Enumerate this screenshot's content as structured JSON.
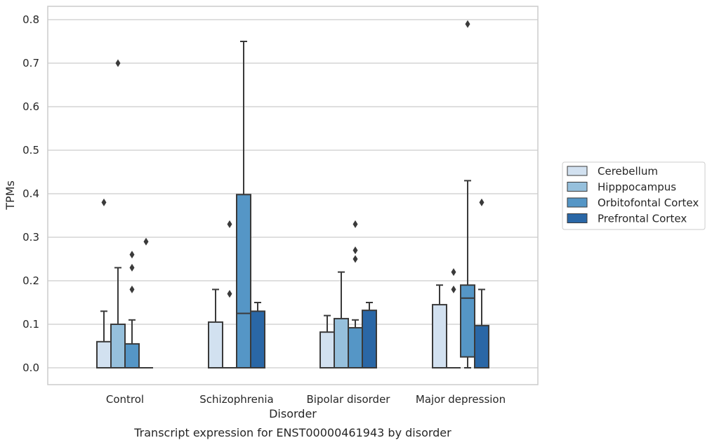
{
  "chart_data": {
    "type": "box",
    "title": "",
    "caption": "Transcript expression for ENST00000461943 by disorder",
    "xlabel": "Disorder",
    "ylabel": "TPMs",
    "ylim": [
      -0.04,
      0.83
    ],
    "yticks": [
      "0.0",
      "0.1",
      "0.2",
      "0.3",
      "0.4",
      "0.5",
      "0.6",
      "0.7",
      "0.8"
    ],
    "categories": [
      "Control",
      "Schizophrenia",
      "Bipolar disorder",
      "Major depression"
    ],
    "grid": "horizontal",
    "legend_position": "right",
    "colors": {
      "Cerebellum": "#d2e1f0",
      "Hipppocampus": "#96c0dc",
      "Orbitofontal Cortex": "#5596c6",
      "Prefrontal Cortex": "#2a67a6",
      "line": "#3a3a3a",
      "grid": "#cccccc",
      "frame": "#cccccc"
    },
    "series": [
      {
        "name": "Cerebellum",
        "boxes": [
          {
            "q1": 0.0,
            "median": 0.0,
            "q3": 0.06,
            "whisker_low": 0.0,
            "whisker_high": 0.13,
            "outliers": [
              0.38
            ]
          },
          {
            "q1": 0.0,
            "median": 0.0,
            "q3": 0.105,
            "whisker_low": 0.0,
            "whisker_high": 0.18,
            "outliers": []
          },
          {
            "q1": 0.0,
            "median": 0.0,
            "q3": 0.082,
            "whisker_low": 0.0,
            "whisker_high": 0.12,
            "outliers": []
          },
          {
            "q1": 0.0,
            "median": 0.0,
            "q3": 0.145,
            "whisker_low": 0.0,
            "whisker_high": 0.19,
            "outliers": []
          }
        ]
      },
      {
        "name": "Hipppocampus",
        "boxes": [
          {
            "q1": 0.0,
            "median": 0.0,
            "q3": 0.1,
            "whisker_low": 0.0,
            "whisker_high": 0.23,
            "outliers": [
              0.7
            ]
          },
          {
            "q1": 0.0,
            "median": 0.0,
            "q3": 0.0,
            "whisker_low": 0.0,
            "whisker_high": 0.0,
            "outliers": [
              0.33,
              0.17
            ]
          },
          {
            "q1": 0.0,
            "median": 0.0,
            "q3": 0.113,
            "whisker_low": 0.0,
            "whisker_high": 0.22,
            "outliers": []
          },
          {
            "q1": 0.0,
            "median": 0.0,
            "q3": 0.0,
            "whisker_low": 0.0,
            "whisker_high": 0.0,
            "outliers": [
              0.22,
              0.18
            ]
          }
        ]
      },
      {
        "name": "Orbitofontal Cortex",
        "boxes": [
          {
            "q1": 0.0,
            "median": 0.0,
            "q3": 0.055,
            "whisker_low": 0.0,
            "whisker_high": 0.11,
            "outliers": [
              0.26,
              0.23,
              0.18
            ]
          },
          {
            "q1": 0.0,
            "median": 0.125,
            "q3": 0.398,
            "whisker_low": 0.0,
            "whisker_high": 0.75,
            "outliers": []
          },
          {
            "q1": 0.0,
            "median": 0.0,
            "q3": 0.092,
            "whisker_low": 0.0,
            "whisker_high": 0.11,
            "outliers": [
              0.33,
              0.27,
              0.25
            ]
          },
          {
            "q1": 0.025,
            "median": 0.16,
            "q3": 0.19,
            "whisker_low": 0.0,
            "whisker_high": 0.43,
            "outliers": [
              0.79
            ]
          }
        ]
      },
      {
        "name": "Prefrontal Cortex",
        "boxes": [
          {
            "q1": 0.0,
            "median": 0.0,
            "q3": 0.0,
            "whisker_low": 0.0,
            "whisker_high": 0.0,
            "outliers": [
              0.29
            ]
          },
          {
            "q1": 0.0,
            "median": 0.0,
            "q3": 0.13,
            "whisker_low": 0.0,
            "whisker_high": 0.15,
            "outliers": []
          },
          {
            "q1": 0.0,
            "median": 0.0,
            "q3": 0.132,
            "whisker_low": 0.0,
            "whisker_high": 0.15,
            "outliers": []
          },
          {
            "q1": 0.0,
            "median": 0.0,
            "q3": 0.097,
            "whisker_low": 0.0,
            "whisker_high": 0.18,
            "outliers": [
              0.38
            ]
          }
        ]
      }
    ]
  }
}
